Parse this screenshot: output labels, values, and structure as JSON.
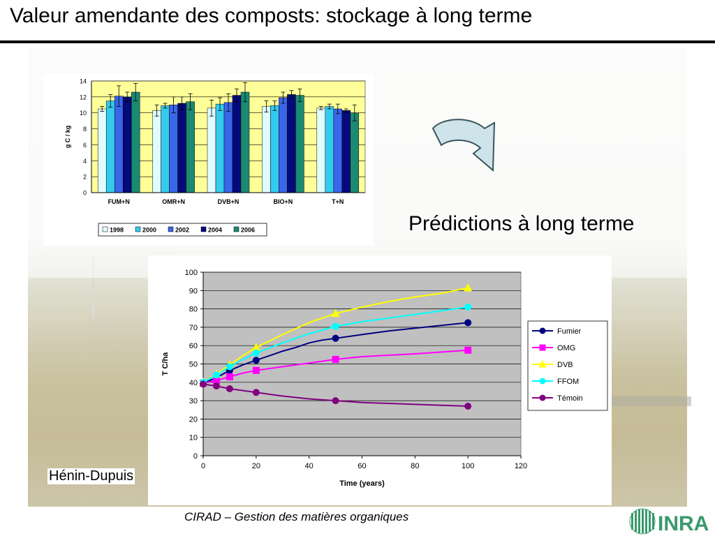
{
  "slide": {
    "title": "Valeur amendante des composts: stockage à long terme",
    "prediction_label": "Prédictions à long terme",
    "author": "Hénin-Dupuis",
    "footer": "CIRAD – Gestion des matières organiques",
    "logo_text": "INRA"
  },
  "chart_data": [
    {
      "type": "bar",
      "ylabel": "g C / kg",
      "ylim": [
        0,
        14
      ],
      "yticks": [
        0,
        2,
        4,
        6,
        8,
        10,
        12,
        14
      ],
      "grid": true,
      "legend_position": "bottom",
      "categories": [
        "FUM+N",
        "OMR+N",
        "DVB+N",
        "BIO+N",
        "T+N"
      ],
      "series": [
        {
          "name": "1998",
          "color": "#dffcff",
          "values": [
            10.5,
            10.3,
            10.6,
            10.8,
            10.6
          ],
          "errors": [
            0.3,
            0.7,
            1.0,
            0.7,
            0.2
          ]
        },
        {
          "name": "2000",
          "color": "#33ccee",
          "values": [
            11.5,
            10.9,
            11.1,
            10.9,
            10.8
          ],
          "errors": [
            0.8,
            0.3,
            0.8,
            0.6,
            0.3
          ]
        },
        {
          "name": "2002",
          "color": "#3a66e8",
          "values": [
            12.1,
            11.0,
            11.3,
            11.9,
            10.5
          ],
          "errors": [
            1.3,
            1.0,
            1.1,
            0.7,
            0.6
          ]
        },
        {
          "name": "2004",
          "color": "#050a7a",
          "values": [
            12.0,
            11.2,
            12.2,
            12.3,
            10.3
          ],
          "errors": [
            0.6,
            0.8,
            0.8,
            0.5,
            0.2
          ]
        },
        {
          "name": "2006",
          "color": "#1a8a72",
          "values": [
            12.6,
            11.4,
            12.6,
            12.2,
            10.0
          ],
          "errors": [
            1.1,
            1.0,
            1.2,
            0.8,
            1.0
          ]
        }
      ]
    },
    {
      "type": "line",
      "xlabel": "Time (years)",
      "ylabel": "T C/ha",
      "xlim": [
        0,
        120
      ],
      "ylim": [
        0,
        100
      ],
      "xticks": [
        0,
        20,
        40,
        60,
        80,
        100,
        120
      ],
      "yticks": [
        0,
        10,
        20,
        30,
        40,
        50,
        60,
        70,
        80,
        90,
        100
      ],
      "grid": true,
      "legend_position": "right",
      "series": [
        {
          "name": "Fumier",
          "color": "#000080",
          "marker": "circle",
          "line": [
            [
              0,
              39.5
            ],
            [
              5,
              42.5
            ],
            [
              10,
              46.5
            ],
            [
              15,
              49.5
            ],
            [
              20,
              52
            ],
            [
              25,
              54.5
            ],
            [
              30,
              57
            ],
            [
              35,
              59
            ],
            [
              40,
              61.5
            ],
            [
              45,
              63
            ],
            [
              50,
              64
            ],
            [
              60,
              66
            ],
            [
              70,
              68
            ],
            [
              80,
              69.5
            ],
            [
              90,
              71
            ],
            [
              100,
              72.5
            ]
          ],
          "points": [
            [
              0,
              39.5
            ],
            [
              5,
              42.5
            ],
            [
              10,
              46.5
            ],
            [
              20,
              52
            ],
            [
              50,
              64
            ],
            [
              100,
              72.5
            ]
          ]
        },
        {
          "name": "OMG",
          "color": "#ff00ff",
          "marker": "square",
          "line": [
            [
              0,
              39.5
            ],
            [
              5,
              41
            ],
            [
              10,
              43
            ],
            [
              15,
              45
            ],
            [
              20,
              46.5
            ],
            [
              30,
              48.5
            ],
            [
              40,
              50.5
            ],
            [
              50,
              52.5
            ],
            [
              60,
              54
            ],
            [
              80,
              55.5
            ],
            [
              100,
              57.5
            ]
          ],
          "points": [
            [
              0,
              39.5
            ],
            [
              5,
              41
            ],
            [
              10,
              43
            ],
            [
              20,
              46.5
            ],
            [
              50,
              52.5
            ],
            [
              100,
              57.5
            ]
          ]
        },
        {
          "name": "DVB",
          "color": "#ffff00",
          "marker": "triangle",
          "line": [
            [
              0,
              40
            ],
            [
              5,
              44.5
            ],
            [
              10,
              49.5
            ],
            [
              15,
              54.5
            ],
            [
              20,
              59
            ],
            [
              30,
              66
            ],
            [
              40,
              72.5
            ],
            [
              50,
              77.5
            ],
            [
              60,
              81
            ],
            [
              70,
              84
            ],
            [
              80,
              86.5
            ],
            [
              90,
              88.5
            ],
            [
              100,
              91.5
            ]
          ],
          "points": [
            [
              0,
              40
            ],
            [
              5,
              44.5
            ],
            [
              10,
              49.5
            ],
            [
              20,
              59
            ],
            [
              50,
              77.5
            ],
            [
              100,
              91.5
            ]
          ]
        },
        {
          "name": "FFOM",
          "color": "#00ffff",
          "marker": "circle",
          "line": [
            [
              0,
              40
            ],
            [
              5,
              44
            ],
            [
              10,
              48.5
            ],
            [
              15,
              52.5
            ],
            [
              20,
              56
            ],
            [
              30,
              61.5
            ],
            [
              40,
              66.5
            ],
            [
              50,
              70.5
            ],
            [
              60,
              73
            ],
            [
              70,
              75
            ],
            [
              80,
              77
            ],
            [
              90,
              79
            ],
            [
              100,
              81
            ]
          ],
          "points": [
            [
              0,
              40
            ],
            [
              5,
              44
            ],
            [
              10,
              48.5
            ],
            [
              20,
              56
            ],
            [
              50,
              70.5
            ],
            [
              100,
              81
            ]
          ]
        },
        {
          "name": "Témoin",
          "color": "#800080",
          "marker": "circle",
          "line": [
            [
              0,
              39
            ],
            [
              5,
              38
            ],
            [
              10,
              36.5
            ],
            [
              15,
              35.5
            ],
            [
              20,
              34.5
            ],
            [
              30,
              32.5
            ],
            [
              40,
              31
            ],
            [
              50,
              30
            ],
            [
              60,
              29
            ],
            [
              70,
              28.5
            ],
            [
              80,
              28
            ],
            [
              90,
              27.5
            ],
            [
              100,
              27
            ]
          ],
          "points": [
            [
              0,
              39
            ],
            [
              5,
              38
            ],
            [
              10,
              36.5
            ],
            [
              20,
              34.5
            ],
            [
              50,
              30
            ],
            [
              100,
              27
            ]
          ]
        }
      ]
    }
  ]
}
